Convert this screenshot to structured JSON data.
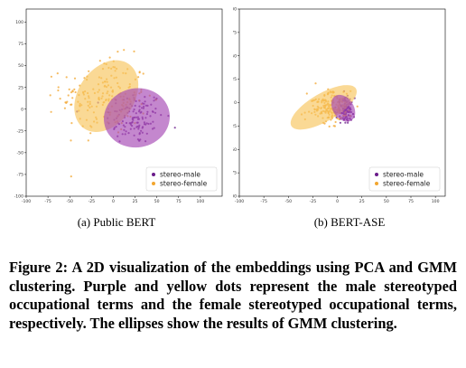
{
  "colors": {
    "male": "#6a1b8a",
    "female": "#f2a62f",
    "male_ellipse": "#a447b3",
    "female_ellipse": "#f7c45c"
  },
  "chart_data": [
    {
      "type": "scatter",
      "caption": "(a) Public BERT",
      "xticks": [
        "-100",
        "-75",
        "-50",
        "-25",
        "0",
        "25",
        "50",
        "75",
        "100"
      ],
      "yticks": [
        "100",
        "75",
        "50",
        "25",
        "0",
        "-25",
        "-50",
        "-75",
        "-100"
      ],
      "xlim": [
        -100,
        125
      ],
      "ylim": [
        -100,
        115
      ],
      "legend": {
        "position": "lower-right",
        "entries": [
          "stereo-male",
          "stereo-female"
        ]
      },
      "grid": false,
      "series": [
        {
          "name": "stereo-male",
          "color": "#6a1b8a",
          "center": [
            25,
            -10
          ],
          "spread": [
            30,
            28
          ],
          "count": 130
        },
        {
          "name": "stereo-female",
          "color": "#f2a62f",
          "center": [
            -10,
            15
          ],
          "spread": [
            45,
            40
          ],
          "count": 180
        }
      ],
      "ellipses": [
        {
          "series": "stereo-female",
          "center": [
            -8,
            15
          ],
          "rx": 45,
          "ry": 32,
          "angle_deg": 55
        },
        {
          "series": "stereo-male",
          "center": [
            27,
            -10
          ],
          "rx": 38,
          "ry": 34,
          "angle_deg": 10
        }
      ]
    },
    {
      "type": "scatter",
      "caption": "(b) BERT-ASE",
      "xticks": [
        "-100",
        "-75",
        "-50",
        "-25",
        "0",
        "25",
        "50",
        "75",
        "100"
      ],
      "yticks": [
        "100",
        "75",
        "50",
        "25",
        "0",
        "-25",
        "-50",
        "-75",
        "-100"
      ],
      "xlim": [
        -100,
        110
      ],
      "ylim": [
        -100,
        100
      ],
      "legend": {
        "position": "lower-right",
        "entries": [
          "stereo-male",
          "stereo-female"
        ]
      },
      "grid": false,
      "series": [
        {
          "name": "stereo-male",
          "color": "#6a1b8a",
          "center": [
            8,
            -8
          ],
          "spread": [
            8,
            12
          ],
          "count": 130
        },
        {
          "name": "stereo-female",
          "color": "#f2a62f",
          "center": [
            -8,
            -5
          ],
          "spread": [
            20,
            15
          ],
          "count": 180
        }
      ],
      "ellipses": [
        {
          "series": "stereo-female",
          "center": [
            -14,
            -5
          ],
          "rx": 38,
          "ry": 15,
          "angle_deg": 30
        },
        {
          "series": "stereo-male",
          "center": [
            6,
            -6
          ],
          "rx": 15,
          "ry": 11,
          "angle_deg": -55
        }
      ]
    }
  ],
  "figure_caption": "Figure 2: A 2D visualization of the embeddings using PCA and GMM clustering. Purple and yellow dots represent the male stereotyped occupational terms and the female stereotyped occupational terms, respectively. The ellipses show the results of GMM clustering."
}
